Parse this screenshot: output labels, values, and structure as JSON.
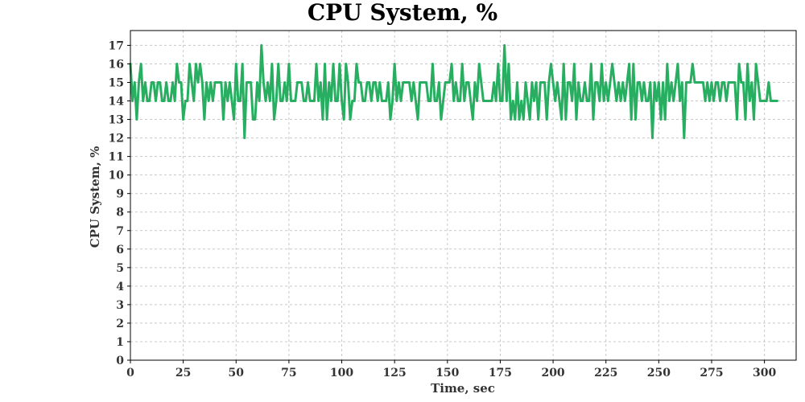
{
  "chart_data": {
    "type": "line",
    "title": "CPU System, %",
    "xlabel": "Time, sec",
    "ylabel": "CPU System, %",
    "xlim": [
      0,
      315
    ],
    "ylim": [
      0,
      17.8
    ],
    "x_ticks": [
      0,
      25,
      50,
      75,
      100,
      125,
      150,
      175,
      200,
      225,
      250,
      275,
      300
    ],
    "y_ticks": [
      0,
      1,
      2,
      3,
      4,
      5,
      6,
      7,
      8,
      9,
      10,
      11,
      12,
      13,
      14,
      15,
      16,
      17
    ],
    "grid": true,
    "legend": "none",
    "colors": {
      "series": "#27ae60",
      "grid": "#c8c8c8",
      "axis": "#000000"
    },
    "series": [
      {
        "x_start": 0,
        "x_step": 1,
        "values": [
          16,
          14,
          15,
          13,
          15,
          16,
          14,
          15,
          14,
          14,
          15,
          15,
          14,
          15,
          15,
          14,
          14,
          15,
          14,
          14,
          15,
          14,
          16,
          15,
          15,
          13,
          14,
          14,
          16,
          15,
          14,
          16,
          15,
          16,
          15,
          13,
          15,
          14,
          15,
          14,
          15,
          15,
          15,
          15,
          13,
          15,
          14,
          15,
          14,
          13,
          16,
          14,
          14,
          16,
          12,
          15,
          15,
          15,
          13,
          13,
          15,
          14,
          17,
          15,
          14,
          15,
          14,
          16,
          13,
          14,
          16,
          14,
          14,
          15,
          14,
          16,
          14,
          14,
          14,
          15,
          15,
          15,
          14,
          14,
          15,
          14,
          14,
          14,
          16,
          14,
          15,
          13,
          16,
          13,
          15,
          14,
          16,
          14,
          14,
          16,
          14,
          13,
          16,
          15,
          13,
          14,
          14,
          16,
          15,
          15,
          14,
          14,
          15,
          15,
          14,
          15,
          15,
          14,
          15,
          14,
          14,
          14,
          15,
          13,
          14,
          16,
          14,
          15,
          14,
          15,
          15,
          15,
          15,
          14,
          15,
          14,
          13,
          15,
          15,
          15,
          15,
          14,
          14,
          16,
          14,
          14,
          15,
          13,
          14,
          15,
          15,
          15,
          16,
          14,
          15,
          14,
          14,
          16,
          14,
          15,
          15,
          14,
          13,
          15,
          14,
          16,
          15,
          14,
          14,
          14,
          14,
          14,
          15,
          14,
          16,
          14,
          14,
          17,
          14,
          16,
          13,
          14,
          13,
          15,
          13,
          14,
          13,
          15,
          14,
          13,
          15,
          14,
          15,
          13,
          15,
          15,
          15,
          13,
          15,
          16,
          15,
          14,
          15,
          14,
          13,
          16,
          13,
          15,
          15,
          14,
          16,
          13,
          15,
          14,
          14,
          15,
          14,
          14,
          16,
          13,
          15,
          15,
          14,
          16,
          14,
          15,
          14,
          15,
          16,
          15,
          14,
          15,
          14,
          15,
          14,
          15,
          16,
          13,
          16,
          13,
          15,
          15,
          14,
          15,
          14,
          14,
          15,
          12,
          15,
          14,
          15,
          13,
          15,
          13,
          16,
          14,
          15,
          14,
          15,
          16,
          14,
          15,
          12,
          15,
          15,
          15,
          16,
          15,
          15,
          15,
          15,
          15,
          14,
          15,
          14,
          15,
          14,
          15,
          15,
          14,
          15,
          15,
          14,
          15,
          15,
          15,
          15,
          13,
          16,
          15,
          15,
          13,
          16,
          14,
          15,
          13,
          16,
          15,
          14,
          14,
          14,
          14,
          15,
          14,
          14,
          14,
          14
        ]
      }
    ]
  }
}
